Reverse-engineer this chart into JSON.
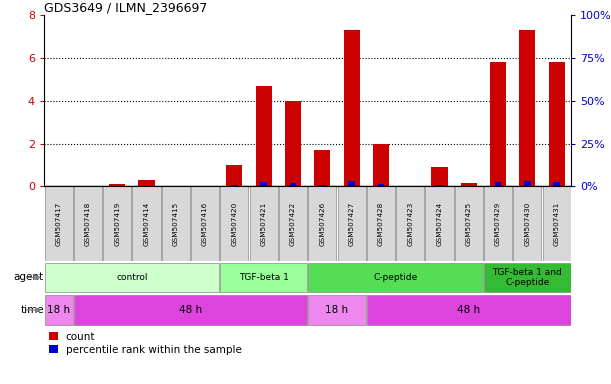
{
  "title": "GDS3649 / ILMN_2396697",
  "samples": [
    "GSM507417",
    "GSM507418",
    "GSM507419",
    "GSM507414",
    "GSM507415",
    "GSM507416",
    "GSM507420",
    "GSM507421",
    "GSM507422",
    "GSM507426",
    "GSM507427",
    "GSM507428",
    "GSM507423",
    "GSM507424",
    "GSM507425",
    "GSM507429",
    "GSM507430",
    "GSM507431"
  ],
  "count_values": [
    0.0,
    0.0,
    0.1,
    0.3,
    0.0,
    0.0,
    1.0,
    4.7,
    4.0,
    1.7,
    7.3,
    2.0,
    0.0,
    0.9,
    0.15,
    5.8,
    7.3,
    5.8
  ],
  "percentile_values": [
    0.0,
    0.0,
    0.12,
    0.28,
    0.0,
    0.0,
    0.55,
    2.3,
    2.1,
    0.9,
    3.2,
    1.1,
    0.0,
    0.5,
    0.1,
    2.6,
    3.3,
    2.6
  ],
  "count_color": "#cc0000",
  "percentile_color": "#0000cc",
  "ylim_left": [
    0,
    8
  ],
  "ylim_right": [
    0,
    100
  ],
  "yticks_left": [
    0,
    2,
    4,
    6,
    8
  ],
  "yticks_right": [
    0,
    25,
    50,
    75,
    100
  ],
  "agent_groups": [
    {
      "label": "control",
      "start": 0,
      "end": 6,
      "color": "#ccffcc"
    },
    {
      "label": "TGF-beta 1",
      "start": 6,
      "end": 9,
      "color": "#99ff99"
    },
    {
      "label": "C-peptide",
      "start": 9,
      "end": 15,
      "color": "#55dd55"
    },
    {
      "label": "TGF-beta 1 and\nC-peptide",
      "start": 15,
      "end": 18,
      "color": "#33bb33"
    }
  ],
  "time_groups": [
    {
      "label": "18 h",
      "start": 0,
      "end": 1,
      "color": "#ee88ee"
    },
    {
      "label": "48 h",
      "start": 1,
      "end": 9,
      "color": "#dd44dd"
    },
    {
      "label": "18 h",
      "start": 9,
      "end": 11,
      "color": "#ee88ee"
    },
    {
      "label": "48 h",
      "start": 11,
      "end": 18,
      "color": "#dd44dd"
    }
  ],
  "bar_width": 0.55,
  "perc_bar_width": 0.22,
  "background_color": "#ffffff",
  "sample_box_color": "#d8d8d8",
  "ylabel_left_color": "#cc0000",
  "ylabel_right_color": "#0000cc",
  "grid_yticks": [
    2,
    4,
    6
  ]
}
